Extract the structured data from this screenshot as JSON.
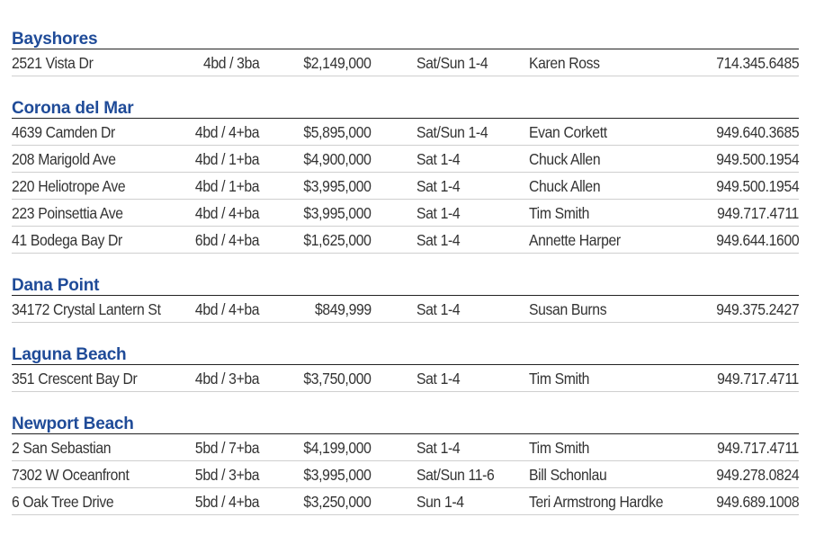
{
  "colors": {
    "heading": "#1f4b98",
    "rule": "#222222",
    "row_divider": "#cfcfcf"
  },
  "sections": [
    {
      "title": "Bayshores",
      "rows": [
        {
          "address": "2521 Vista Dr",
          "beds": "4bd / 3ba",
          "price": "$2,149,000",
          "time": "Sat/Sun 1-4",
          "agent": "Karen Ross",
          "phone": "714.345.6485"
        }
      ]
    },
    {
      "title": "Corona del Mar",
      "rows": [
        {
          "address": "4639 Camden Dr",
          "beds": "4bd / 4+ba",
          "price": "$5,895,000",
          "time": "Sat/Sun 1-4",
          "agent": "Evan Corkett",
          "phone": "949.640.3685"
        },
        {
          "address": "208 Marigold Ave",
          "beds": "4bd / 1+ba",
          "price": "$4,900,000",
          "time": "Sat 1-4",
          "agent": "Chuck Allen",
          "phone": "949.500.1954"
        },
        {
          "address": "220 Heliotrope Ave",
          "beds": "4bd / 1+ba",
          "price": "$3,995,000",
          "time": "Sat 1-4",
          "agent": "Chuck Allen",
          "phone": "949.500.1954"
        },
        {
          "address": "223 Poinsettia Ave",
          "beds": "4bd / 4+ba",
          "price": "$3,995,000",
          "time": "Sat 1-4",
          "agent": "Tim Smith",
          "phone": "949.717.4711"
        },
        {
          "address": "41 Bodega Bay Dr",
          "beds": "6bd / 4+ba",
          "price": "$1,625,000",
          "time": "Sat 1-4",
          "agent": "Annette Harper",
          "phone": "949.644.1600"
        }
      ]
    },
    {
      "title": "Dana Point",
      "rows": [
        {
          "address": "34172 Crystal Lantern St",
          "beds": "4bd / 4+ba",
          "price": "$849,999",
          "time": "Sat 1-4",
          "agent": "Susan Burns",
          "phone": "949.375.2427"
        }
      ]
    },
    {
      "title": "Laguna Beach",
      "rows": [
        {
          "address": "351 Crescent Bay Dr",
          "beds": "4bd / 3+ba",
          "price": "$3,750,000",
          "time": "Sat 1-4",
          "agent": "Tim Smith",
          "phone": "949.717.4711"
        }
      ]
    },
    {
      "title": "Newport Beach",
      "rows": [
        {
          "address": "2 San Sebastian",
          "beds": "5bd / 7+ba",
          "price": "$4,199,000",
          "time": "Sat 1-4",
          "agent": "Tim Smith",
          "phone": "949.717.4711"
        },
        {
          "address": "7302 W Oceanfront",
          "beds": "5bd / 3+ba",
          "price": "$3,995,000",
          "time": "Sat/Sun 11-6",
          "agent": "Bill Schonlau",
          "phone": "949.278.0824"
        },
        {
          "address": "6 Oak Tree Drive",
          "beds": "5bd / 4+ba",
          "price": "$3,250,000",
          "time": "Sun 1-4",
          "agent": "Teri Armstrong Hardke",
          "phone": "949.689.1008"
        }
      ]
    }
  ]
}
